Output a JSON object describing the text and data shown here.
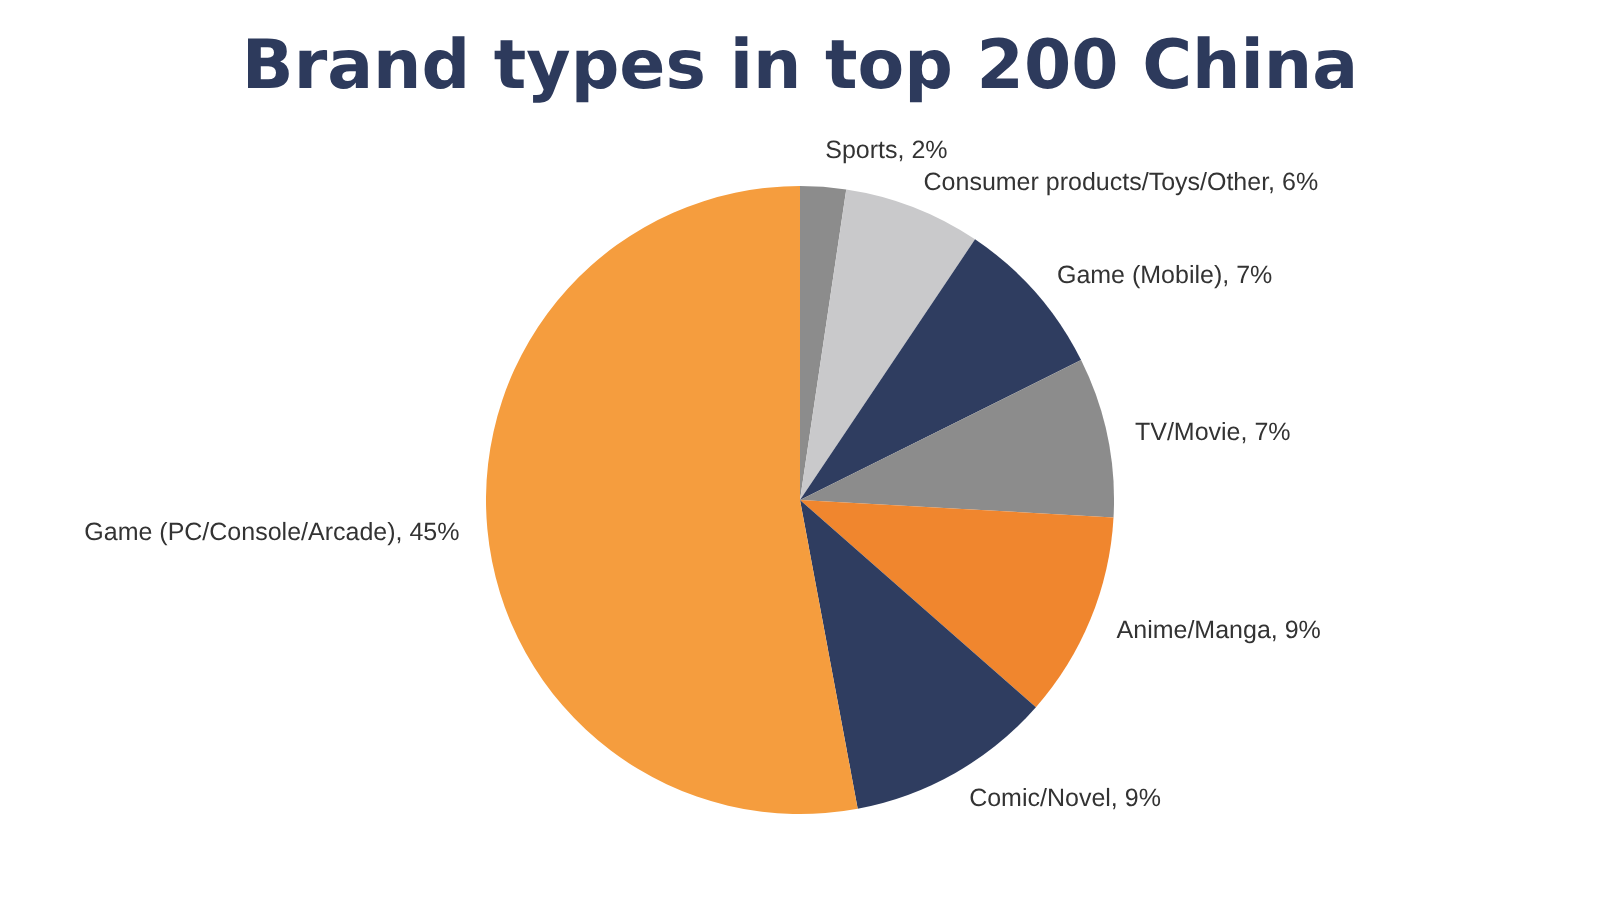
{
  "chart_data": {
    "type": "pie",
    "title": "Brand types in top 200 China",
    "categories": [
      "Sports",
      "Consumer products/Toys/Other",
      "Game (Mobile)",
      "TV/Movie",
      "Anime/Manga",
      "Comic/Novel",
      "Game (PC/Console/Arcade)"
    ],
    "values": [
      2,
      6,
      7,
      7,
      9,
      9,
      45
    ],
    "colors": [
      "#8c8c8c",
      "#c9c9cb",
      "#2f3d60",
      "#8c8c8c",
      "#f0862e",
      "#2f3d60",
      "#f59d3e"
    ],
    "value_labels": [
      "2%",
      "6%",
      "7%",
      "7%",
      "9%",
      "9%",
      "45%"
    ]
  }
}
